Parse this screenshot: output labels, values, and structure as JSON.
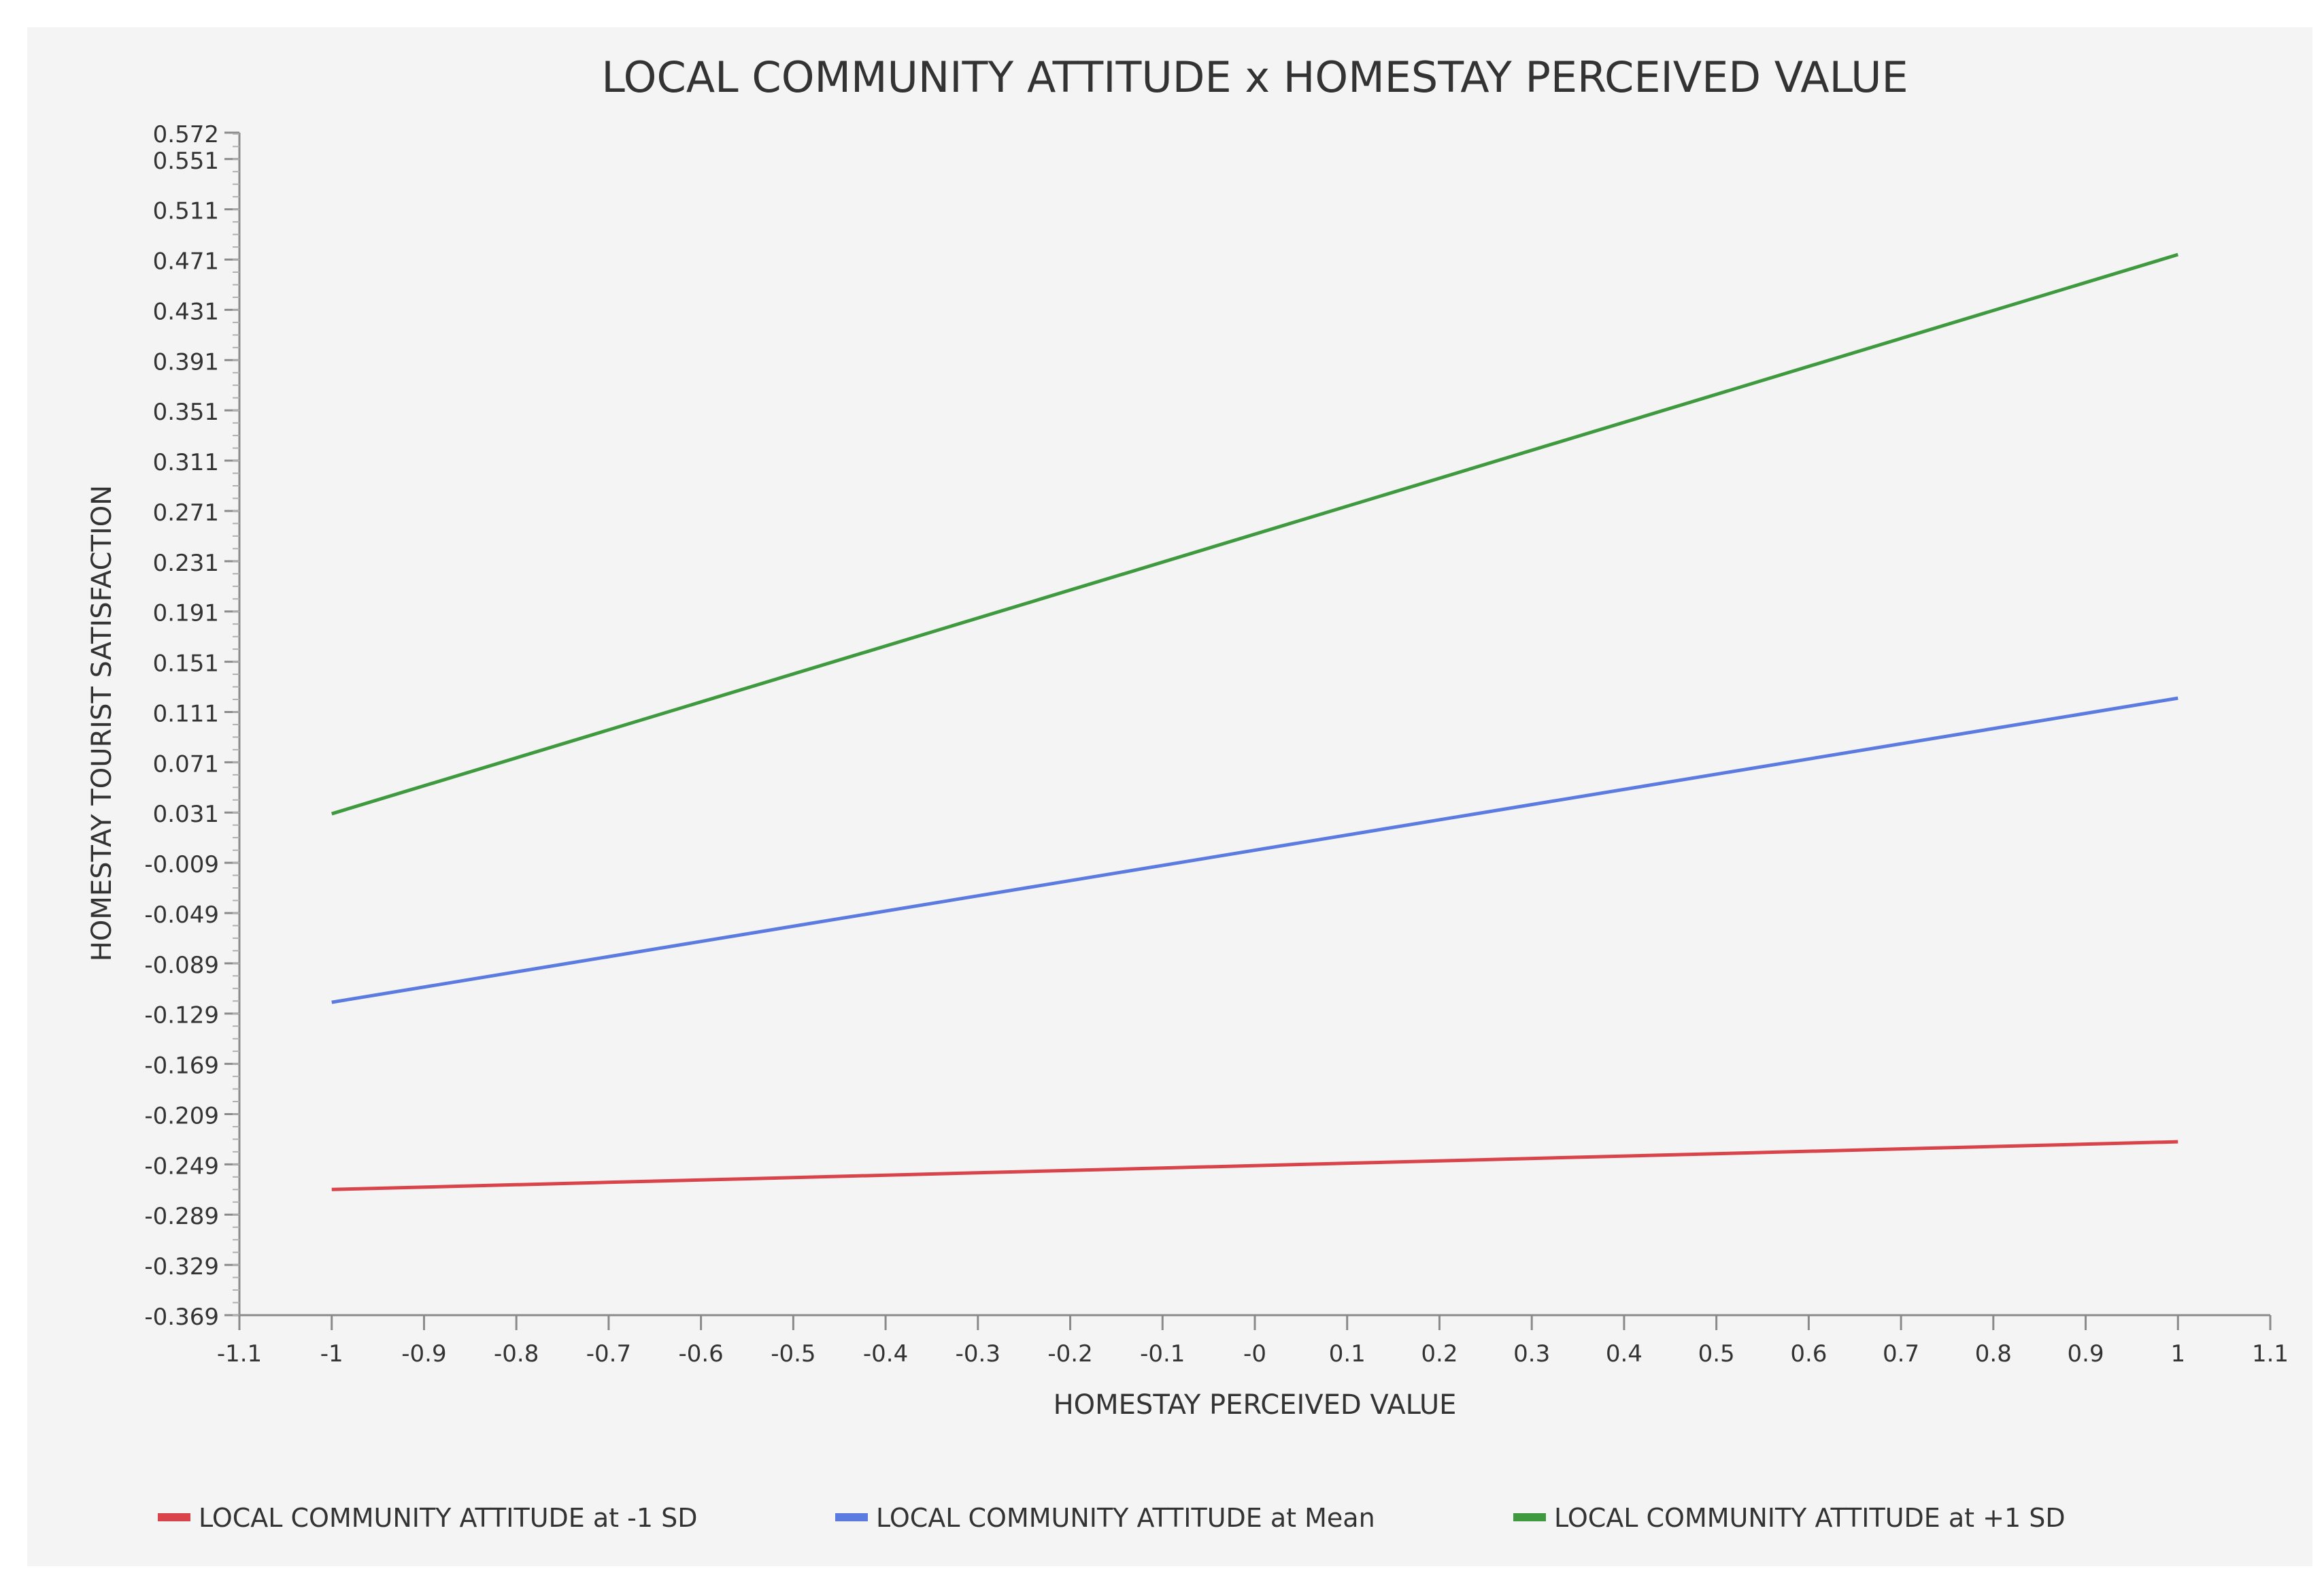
{
  "chart_data": {
    "type": "line",
    "title": "LOCAL COMMUNITY ATTITUDE x HOMESTAY PERCEIVED VALUE",
    "xlabel": "HOMESTAY PERCEIVED VALUE",
    "ylabel": "HOMESTAY TOURIST SATISFACTION",
    "xlim": [
      -1.1,
      1.1
    ],
    "ylim": [
      -0.369,
      0.572
    ],
    "x_ticks": [
      "-1.1",
      "-1",
      "-0.9",
      "-0.8",
      "-0.7",
      "-0.6",
      "-0.5",
      "-0.4",
      "-0.3",
      "-0.2",
      "-0.1",
      "-0",
      "0.1",
      "0.2",
      "0.3",
      "0.4",
      "0.5",
      "0.6",
      "0.7",
      "0.8",
      "0.9",
      "1",
      "1.1"
    ],
    "y_ticks": [
      "0.572",
      "0.551",
      "0.511",
      "0.471",
      "0.431",
      "0.391",
      "0.351",
      "0.311",
      "0.271",
      "0.231",
      "0.191",
      "0.151",
      "0.111",
      "0.071",
      "0.031",
      "-0.009",
      "-0.049",
      "-0.089",
      "-0.129",
      "-0.169",
      "-0.209",
      "-0.249",
      "-0.289",
      "-0.329",
      "-0.369"
    ],
    "grid": false,
    "legend_position": "bottom",
    "series": [
      {
        "name": "LOCAL COMMUNITY ATTITUDE at -1 SD",
        "color": "#d9444b",
        "x": [
          -1,
          1
        ],
        "y": [
          -0.269,
          -0.231
        ]
      },
      {
        "name": "LOCAL COMMUNITY ATTITUDE at Mean",
        "color": "#5b7be0",
        "x": [
          -1,
          1
        ],
        "y": [
          -0.12,
          0.122
        ]
      },
      {
        "name": "LOCAL COMMUNITY ATTITUDE at +1 SD",
        "color": "#3f9a3f",
        "x": [
          -1,
          1
        ],
        "y": [
          0.03,
          0.475
        ]
      }
    ]
  }
}
